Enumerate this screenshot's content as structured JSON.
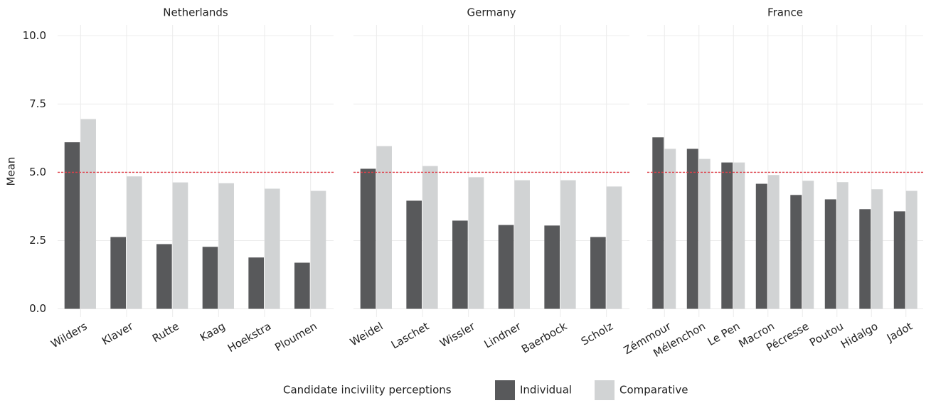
{
  "y_label": "Mean",
  "legend_title": "Candidate incivility perceptions",
  "chart_data": [
    {
      "type": "bar",
      "title": "Netherlands",
      "categories": [
        "Wilders",
        "Klaver",
        "Rutte",
        "Kaag",
        "Hoekstra",
        "Ploumen"
      ],
      "series": [
        {
          "name": "Individual",
          "color": "#58595b",
          "values": [
            6.1,
            2.63,
            2.37,
            2.27,
            1.88,
            1.69
          ]
        },
        {
          "name": "Comparative",
          "color": "#d1d3d4",
          "values": [
            6.95,
            4.85,
            4.63,
            4.6,
            4.4,
            4.32
          ]
        }
      ],
      "ylim": [
        -0.3,
        10.4
      ],
      "yticks": [
        {
          "value": 0,
          "label": "0.0"
        },
        {
          "value": 2.5,
          "label": "2.5"
        },
        {
          "value": 5,
          "label": "5.0"
        },
        {
          "value": 7.5,
          "label": "7.5"
        },
        {
          "value": 10,
          "label": "10.0"
        }
      ],
      "reference_line": 5,
      "grid": true
    },
    {
      "type": "bar",
      "title": "Germany",
      "categories": [
        "Weidel",
        "Laschet",
        "Wissler",
        "Lindner",
        "Baerbock",
        "Scholz"
      ],
      "series": [
        {
          "name": "Individual",
          "color": "#58595b",
          "values": [
            5.13,
            3.96,
            3.23,
            3.07,
            3.05,
            2.63
          ]
        },
        {
          "name": "Comparative",
          "color": "#d1d3d4",
          "values": [
            5.96,
            5.23,
            4.82,
            4.71,
            4.71,
            4.48
          ]
        }
      ],
      "ylim": [
        -0.3,
        10.4
      ],
      "yticks": [
        {
          "value": 0,
          "label": "0.0"
        },
        {
          "value": 2.5,
          "label": "2.5"
        },
        {
          "value": 5,
          "label": "5.0"
        },
        {
          "value": 7.5,
          "label": "7.5"
        },
        {
          "value": 10,
          "label": "10.0"
        }
      ],
      "reference_line": 5,
      "grid": true
    },
    {
      "type": "bar",
      "title": "France",
      "categories": [
        "Zémmour",
        "Mélenchon",
        "Le Pen",
        "Macron",
        "Pécresse",
        "Poutou",
        "Hidalgo",
        "Jadot"
      ],
      "series": [
        {
          "name": "Individual",
          "color": "#58595b",
          "values": [
            6.28,
            5.86,
            5.36,
            4.58,
            4.17,
            4.01,
            3.65,
            3.57
          ]
        },
        {
          "name": "Comparative",
          "color": "#d1d3d4",
          "values": [
            5.86,
            5.49,
            5.36,
            4.9,
            4.69,
            4.64,
            4.38,
            4.32
          ]
        }
      ],
      "ylim": [
        -0.3,
        10.4
      ],
      "yticks": [
        {
          "value": 0,
          "label": "0.0"
        },
        {
          "value": 2.5,
          "label": "2.5"
        },
        {
          "value": 5,
          "label": "5.0"
        },
        {
          "value": 7.5,
          "label": "7.5"
        },
        {
          "value": 10,
          "label": "10.0"
        }
      ],
      "reference_line": 5,
      "grid": true
    }
  ]
}
